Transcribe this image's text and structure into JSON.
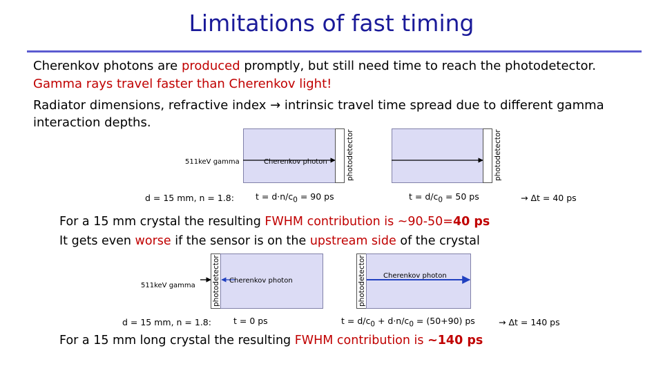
{
  "slide": {
    "title": "Limitations of fast timing",
    "intro": {
      "line1_a": "Cherenkov photons are ",
      "line1_b": "produced",
      "line1_c": " promptly, but still need time to reach the photodetector.",
      "line2": "Gamma rays travel faster than Cherenkov light!",
      "line3": "Radiator dimensions, refractive index → intrinsic travel time spread due to different gamma",
      "line4": "interaction depths."
    },
    "upper": {
      "gamma_label": "511keV gamma",
      "photon_label": "Cherenkov photon",
      "detector_label_1": "photodetector",
      "detector_label_2": "photodetector",
      "params": "d = 15 mm, n = 1.8:",
      "time1_pre": "t = d·n/c",
      "time1_sub": "0",
      "time1_post": " = 90 ps",
      "time2_pre": "t = d/c",
      "time2_sub": "0",
      "time2_post": " = 50 ps",
      "delta": "→ Δt = 40 ps"
    },
    "fwhm1": {
      "text_a": "For a 15 mm crystal the resulting ",
      "text_b": "FWHM contribution is ~90-50=",
      "text_c": "40 ps"
    },
    "worse": {
      "text_a": "It gets even ",
      "text_b": "worse",
      "text_c": " if the sensor is on the ",
      "text_d": "upstream side",
      "text_e": " of the crystal"
    },
    "lower": {
      "gamma_label": "511keV gamma",
      "photon_label_1": "Cherenkov photon",
      "photon_label_2": "Cherenkov photon",
      "detector_label_1": "photodetector",
      "detector_label_2": "photodetector",
      "params": "d = 15 mm, n = 1.8:",
      "time1": "t = 0 ps",
      "time2_pre": "t = d/c",
      "time2_sub1": "0",
      "time2_mid": " + d·n/c",
      "time2_sub2": "0",
      "time2_post": " = (50+90) ps",
      "delta": "→ Δt = 140 ps"
    },
    "fwhm2": {
      "text_a": "For a 15 mm long crystal the resulting ",
      "text_b": "FWHM contribution is ",
      "text_c": "~140 ps"
    },
    "colors": {
      "title": "#1a1a99",
      "rule": "#5a5ad0",
      "accent_red": "#c00000",
      "crystal_fill": "#dcdcf5",
      "photon_arrow": "#2040c0"
    }
  }
}
